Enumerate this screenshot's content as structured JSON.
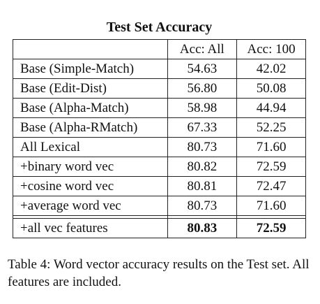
{
  "title": "Test Set Accuracy",
  "headers": [
    "",
    "Acc: All",
    "Acc: 100"
  ],
  "rows": [
    {
      "name": "Base (Simple-Match)",
      "acc_all": "54.63",
      "acc_100": "42.02"
    },
    {
      "name": "Base (Edit-Dist)",
      "acc_all": "56.80",
      "acc_100": "50.08"
    },
    {
      "name": "Base (Alpha-Match)",
      "acc_all": "58.98",
      "acc_100": "44.94"
    },
    {
      "name": "Base (Alpha-RMatch)",
      "acc_all": "67.33",
      "acc_100": "52.25"
    },
    {
      "name": "All Lexical",
      "acc_all": "80.73",
      "acc_100": "71.60"
    },
    {
      "name": "+binary word vec",
      "acc_all": "80.82",
      "acc_100": "72.59"
    },
    {
      "name": "+cosine word vec",
      "acc_all": "80.81",
      "acc_100": "72.47"
    },
    {
      "name": "+average word vec",
      "acc_all": "80.73",
      "acc_100": "71.60"
    }
  ],
  "final_row": {
    "name": "+all vec features",
    "acc_all": "80.83",
    "acc_100": "72.59"
  },
  "caption": "Table 4: Word vector accuracy results on the Test set. All features are included."
}
